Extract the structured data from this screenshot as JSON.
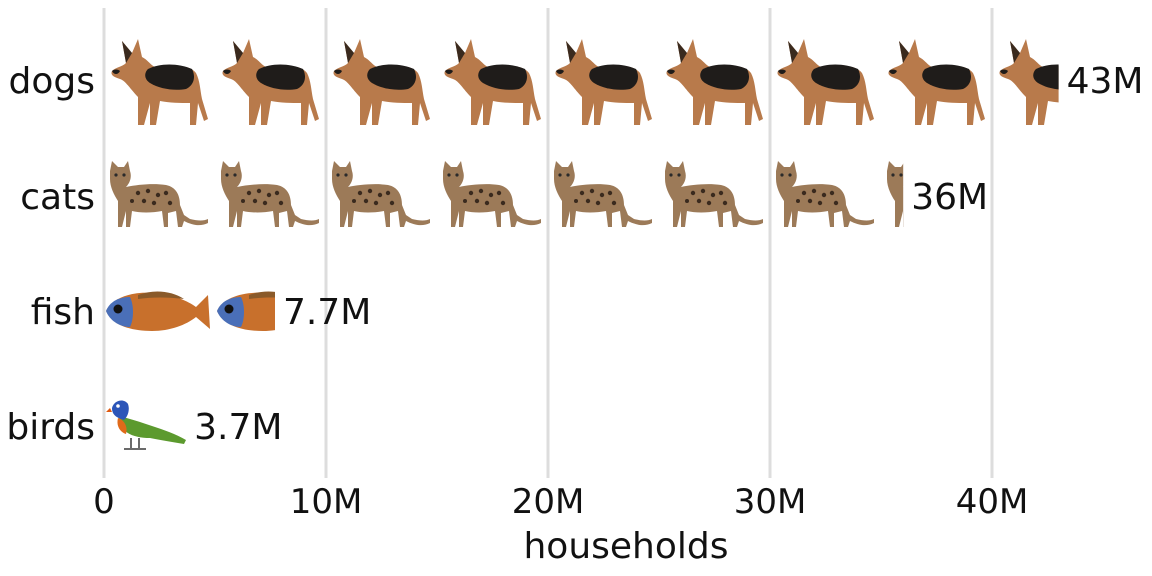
{
  "chart_data": {
    "type": "bar",
    "style": "pictograph",
    "categories": [
      "dogs",
      "cats",
      "fish",
      "birds"
    ],
    "values": [
      43,
      36,
      7.7,
      3.7
    ],
    "value_labels": [
      "43M",
      "36M",
      "7.7M",
      "3.7M"
    ],
    "icons": [
      "dog-icon",
      "cat-icon",
      "fish-icon",
      "bird-icon"
    ],
    "units_per_icon": 5,
    "xlabel": "households",
    "xlim": [
      0,
      45
    ],
    "xticks": [
      0,
      10,
      20,
      30,
      40
    ],
    "xtick_labels": [
      "0",
      "10M",
      "20M",
      "30M",
      "40M"
    ],
    "grid": "vertical",
    "colors": {
      "grid": "#dddddd",
      "text": "#111111",
      "dog_tan": "#b87a4b",
      "dog_black": "#1f1c1a",
      "cat_body": "#9c7a58",
      "cat_spots": "#3a2a1e",
      "fish_blue": "#4a6fb8",
      "fish_orange": "#c8702c",
      "bird_green": "#5c9a2e",
      "bird_orange": "#e06a1a",
      "bird_blue": "#2c55b8"
    }
  }
}
